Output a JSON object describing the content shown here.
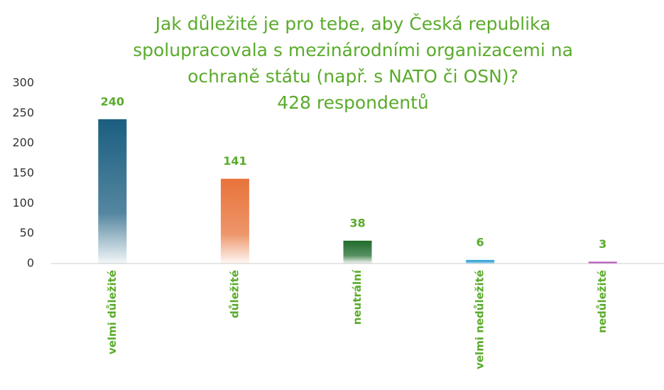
{
  "chart_data": {
    "type": "bar",
    "title": [
      "Jak důležité je pro tebe, aby Česká republika",
      "spolupracovala s mezinárodními organizacemi na",
      "ochraně státu (např. s NATO či OSN)?"
    ],
    "subtitle": "428 respondentů",
    "categories": [
      "velmi důležité",
      "důležité",
      "neutrální",
      "velmi nedůležité",
      "nedůležité"
    ],
    "values": [
      240,
      141,
      38,
      6,
      3
    ],
    "colors": [
      "#1b5e80",
      "#e8733a",
      "#1f6b2c",
      "#2a9fd8",
      "#b03ab0"
    ],
    "ylim": [
      0,
      300
    ],
    "yticks": [
      0,
      50,
      100,
      150,
      200,
      250,
      300
    ],
    "grid": false
  }
}
